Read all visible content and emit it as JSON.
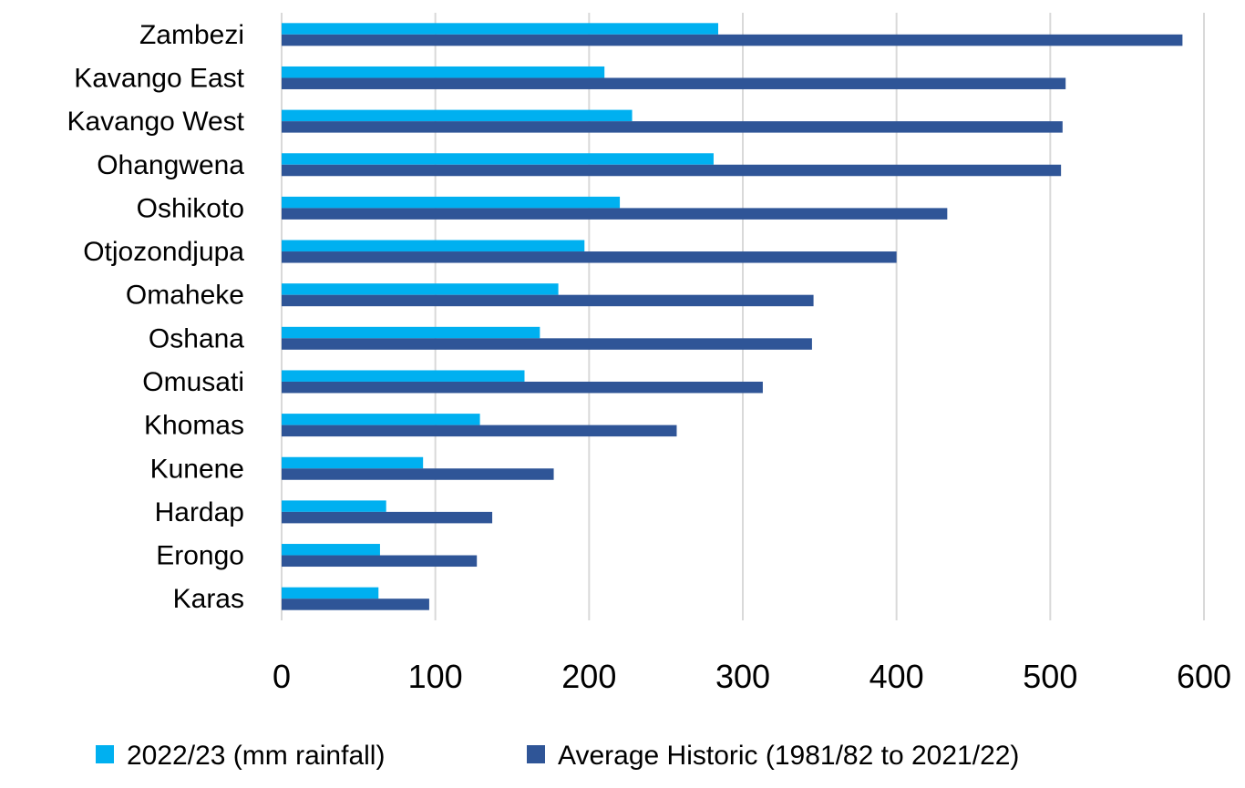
{
  "chart_data": {
    "type": "bar",
    "orientation": "horizontal",
    "title": "",
    "xlabel": "",
    "ylabel": "",
    "categories": [
      "Zambezi",
      "Kavango East",
      "Kavango West",
      "Ohangwena",
      "Oshikoto",
      "Otjozondjupa",
      "Omaheke",
      "Oshana",
      "Omusati",
      "Khomas",
      "Kunene",
      "Hardap",
      "Erongo",
      "Karas"
    ],
    "series": [
      {
        "name": "2022/23 (mm rainfall)",
        "color": "#00B0F0",
        "values": [
          284,
          210,
          228,
          281,
          220,
          197,
          180,
          168,
          158,
          129,
          92,
          68,
          64,
          63
        ]
      },
      {
        "name": "Average Historic (1981/82 to 2021/22)",
        "color": "#2F5597",
        "values": [
          586,
          510,
          508,
          507,
          433,
          400,
          346,
          345,
          313,
          257,
          177,
          137,
          127,
          96
        ]
      }
    ],
    "xlim": [
      0,
      600
    ],
    "xticks": [
      "0",
      "100",
      "200",
      "300",
      "400",
      "500",
      "600"
    ],
    "grid": true,
    "legend_position": "bottom"
  }
}
